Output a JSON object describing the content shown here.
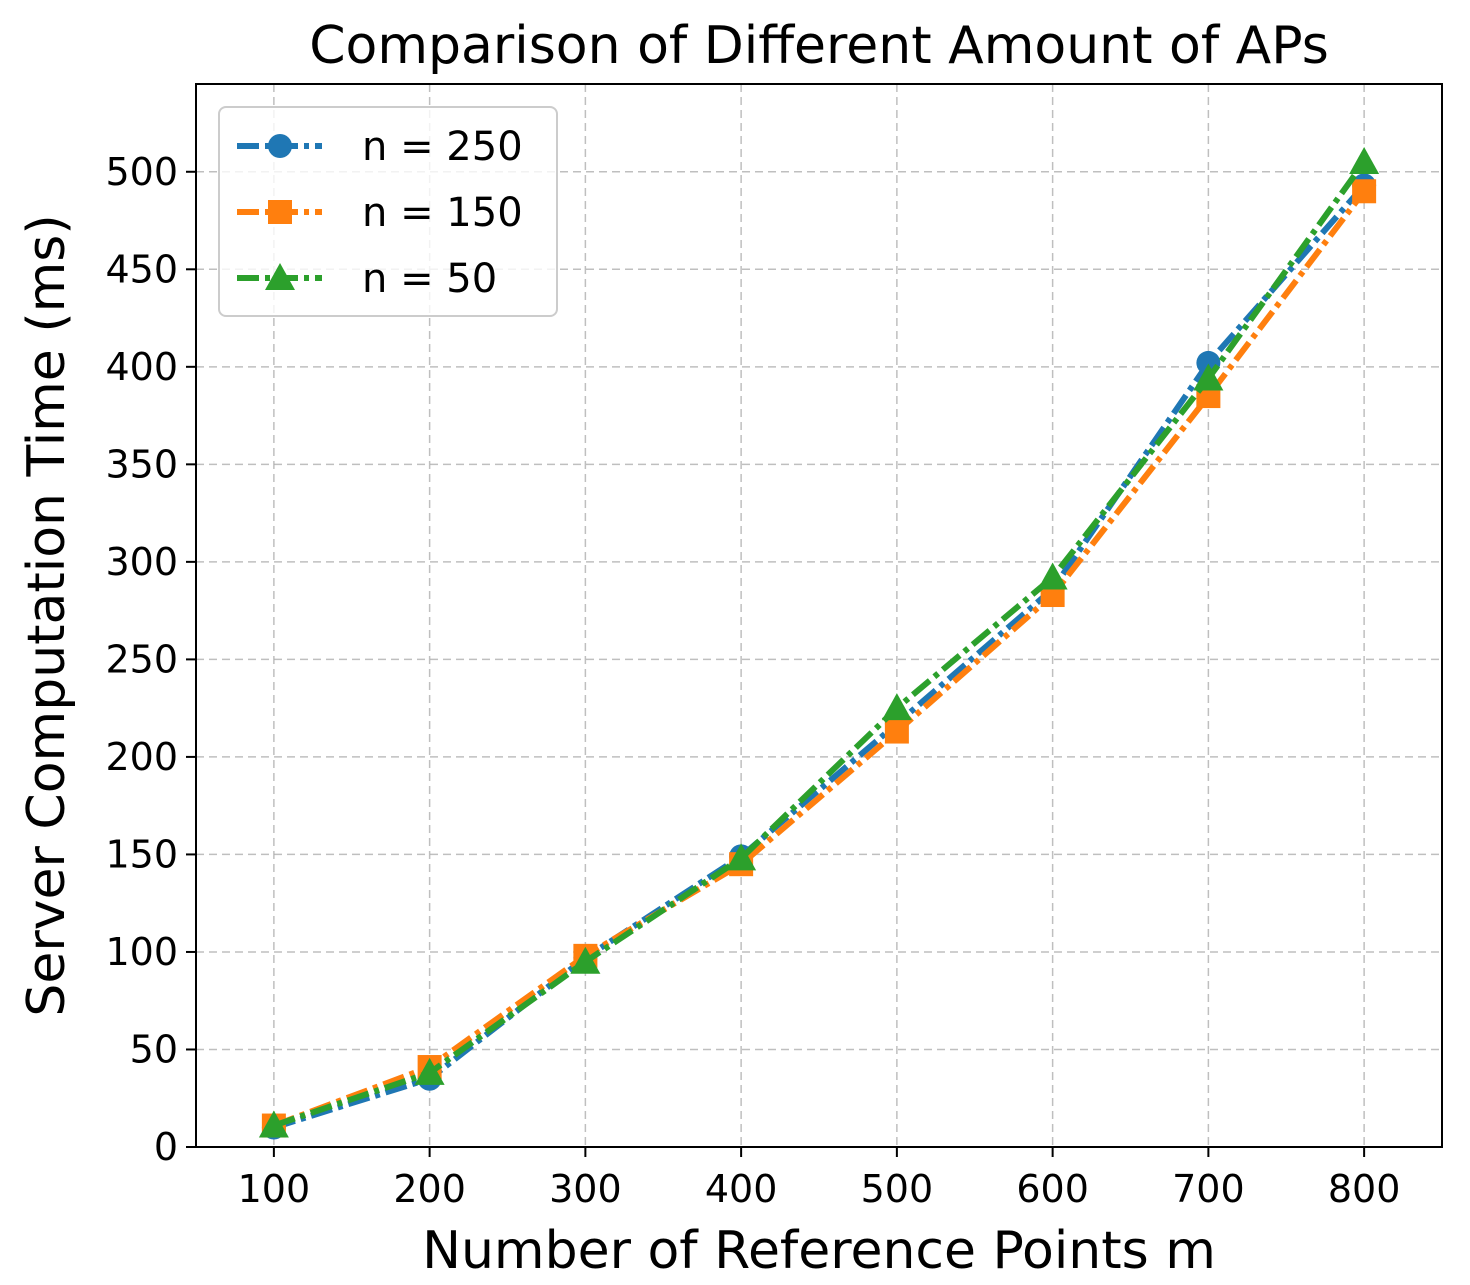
{
  "chart_data": {
    "type": "line",
    "title": "Comparison of Different Amount of APs",
    "xlabel": "Number of Reference Points m",
    "ylabel": "Server Computation Time (ms)",
    "x": [
      100,
      200,
      300,
      400,
      500,
      600,
      700,
      800
    ],
    "xlim": [
      50,
      850
    ],
    "ylim": [
      0,
      545
    ],
    "xticks": [
      "100",
      "200",
      "300",
      "400",
      "500",
      "600",
      "700",
      "800"
    ],
    "yticks": [
      "0",
      "50",
      "100",
      "150",
      "200",
      "250",
      "300",
      "350",
      "400",
      "450",
      "500"
    ],
    "grid": true,
    "legend_position": "top-left",
    "series": [
      {
        "name": "n = 250",
        "color": "#1f77b4",
        "marker": "circle",
        "values": [
          10,
          35,
          97,
          149,
          217,
          286,
          402,
          493
        ]
      },
      {
        "name": "n = 150",
        "color": "#ff7f0e",
        "marker": "square",
        "values": [
          11,
          41,
          98,
          145,
          213,
          283,
          385,
          490
        ]
      },
      {
        "name": "n = 50",
        "color": "#2ca02c",
        "marker": "triangle",
        "values": [
          11,
          38,
          95,
          148,
          225,
          292,
          394,
          505
        ]
      }
    ]
  }
}
